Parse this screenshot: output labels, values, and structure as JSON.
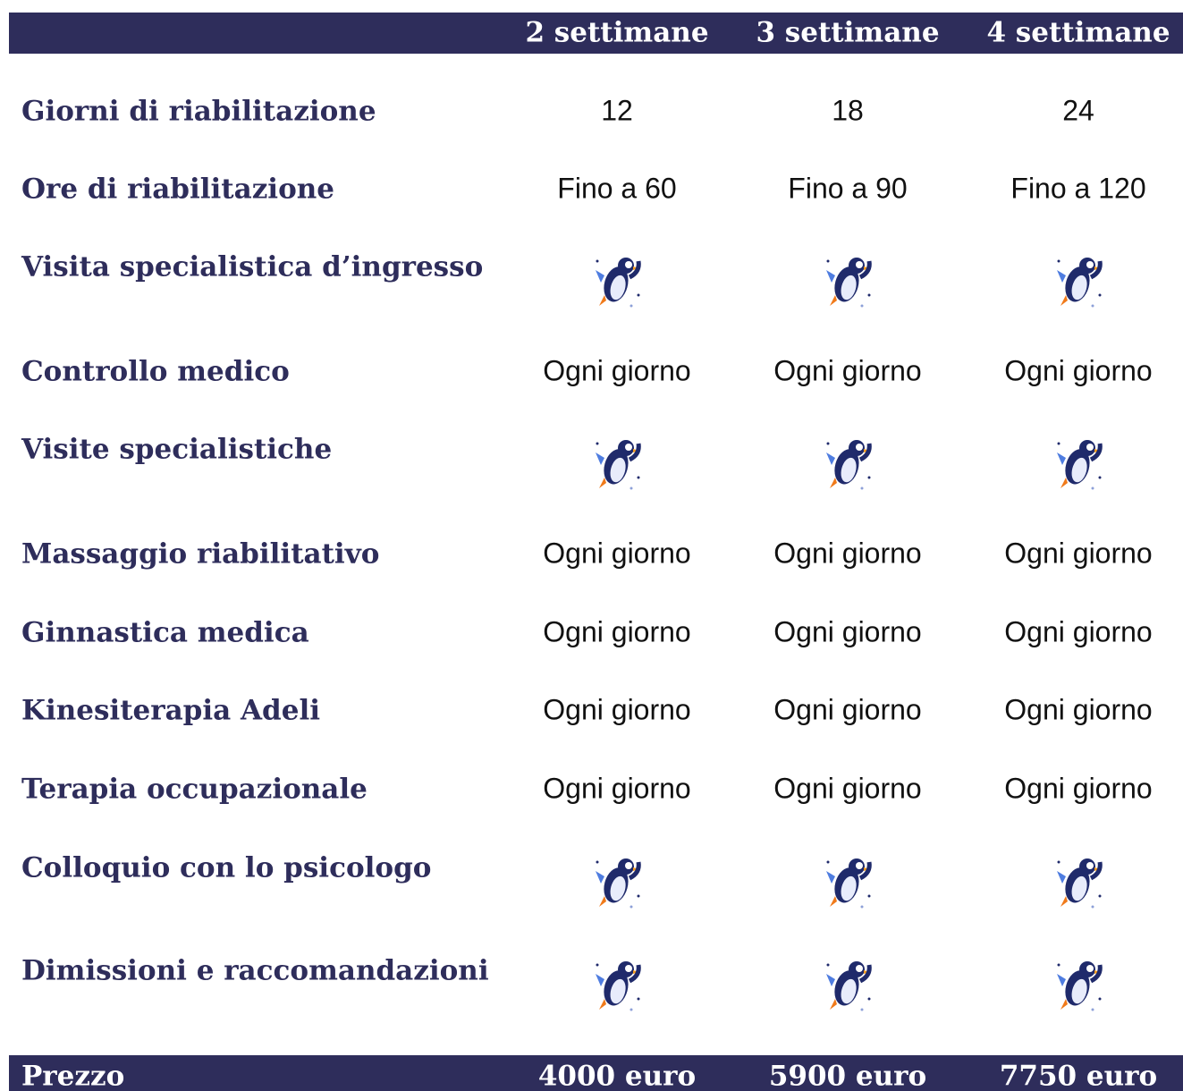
{
  "header": {
    "columns": [
      "2 settimane",
      "3 settimane",
      "4 settimane"
    ]
  },
  "rows": [
    {
      "label": "Giorni di riabilitazione",
      "values": [
        "12",
        "18",
        "24"
      ]
    },
    {
      "label": "Ore di riabilitazione",
      "values": [
        "Fino a 60",
        "Fino a  90",
        "Fino a 120"
      ]
    },
    {
      "label": "Visita specialistica d’ingresso"
    },
    {
      "label": "Controllo medico",
      "values": [
        "Ogni giorno",
        "Ogni giorno",
        "Ogni giorno"
      ]
    },
    {
      "label": "Visite specialistiche"
    },
    {
      "label": "Massaggio riabilitativo",
      "values": [
        "Ogni giorno",
        "Ogni giorno",
        "Ogni giorno"
      ]
    },
    {
      "label": "Ginnastica medica",
      "values": [
        "Ogni giorno",
        "Ogni giorno",
        "Ogni giorno"
      ]
    },
    {
      "label": "Kinesiterapia Adeli",
      "values": [
        "Ogni giorno",
        "Ogni giorno",
        "Ogni giorno"
      ]
    },
    {
      "label": "Terapia occupazionale",
      "values": [
        "Ogni giorno",
        "Ogni giorno",
        "Ogni giorno"
      ]
    },
    {
      "label": "Colloquio con lo psicologo"
    },
    {
      "label": "Dimissioni e raccomandazioni"
    }
  ],
  "footer": {
    "label": "Prezzo",
    "prices": [
      "4000 euro",
      "5900 euro",
      "7750 euro"
    ]
  }
}
